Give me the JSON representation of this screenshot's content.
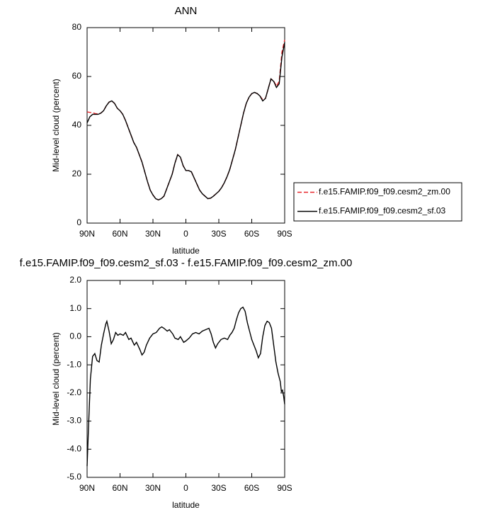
{
  "chart_data": [
    {
      "type": "line",
      "title": "ANN",
      "y_label": "Mid-level cloud (percent)",
      "x_label": "latitude",
      "x": [
        90,
        87.5,
        85,
        82.5,
        80,
        77.5,
        75,
        72.5,
        70,
        67.5,
        65,
        62.5,
        60,
        57.5,
        55,
        52.5,
        50,
        47.5,
        45,
        42.5,
        40,
        37.5,
        35,
        32.5,
        30,
        27.5,
        25,
        22.5,
        20,
        17.5,
        15,
        12.5,
        10,
        7.5,
        5,
        2.5,
        0,
        -2.5,
        -5,
        -7.5,
        -10,
        -12.5,
        -15,
        -17.5,
        -20,
        -22.5,
        -25,
        -27.5,
        -30,
        -32.5,
        -35,
        -37.5,
        -40,
        -42.5,
        -45,
        -47.5,
        -50,
        -52.5,
        -55,
        -57.5,
        -60,
        -62.5,
        -65,
        -67.5,
        -70,
        -72.5,
        -75,
        -77.5,
        -80,
        -82.5,
        -85,
        -87.5,
        -90
      ],
      "xlim": [
        90,
        -90
      ],
      "xticks": [
        {
          "value": 90,
          "label": "90N"
        },
        {
          "value": 60,
          "label": "60N"
        },
        {
          "value": 30,
          "label": "30N"
        },
        0,
        {
          "value": -30,
          "label": "30S"
        },
        {
          "value": -60,
          "label": "60S"
        },
        {
          "value": -90,
          "label": "90S"
        }
      ],
      "ylim": [
        0,
        80
      ],
      "yticks": [
        0,
        20,
        40,
        60,
        80
      ],
      "series": [
        {
          "name": "f.e15.FAMIP.f09_f09.cesm2_zm.00",
          "color": "#e8262b",
          "dashed": true,
          "values": [
            45.5,
            45.3,
            45.2,
            44.8,
            44.7,
            45,
            46,
            48,
            49.5,
            50,
            49,
            47,
            46,
            44.5,
            42,
            39,
            36,
            33,
            31,
            28,
            25,
            21,
            17,
            13.5,
            11.5,
            10,
            9.5,
            10,
            11,
            14,
            17,
            20,
            24.5,
            28,
            27,
            23.5,
            21.5,
            21.5,
            21,
            18.5,
            16,
            13.5,
            12,
            11,
            10,
            10.2,
            11,
            12,
            13,
            14.5,
            16.5,
            19,
            22,
            26,
            30,
            35,
            40,
            45,
            49,
            51.5,
            53,
            53.5,
            53,
            52,
            50.5,
            51,
            55,
            59,
            58.2,
            56,
            58,
            70,
            75
          ]
        },
        {
          "name": "f.e15.FAMIP.f09_f09.cesm2_sf.03",
          "color": "#000000",
          "dashed": false,
          "values": [
            41,
            43.5,
            44.5,
            44.5,
            44.5,
            45,
            46,
            48,
            49.5,
            50,
            49,
            47,
            46,
            44.5,
            42,
            39,
            36,
            33,
            31,
            28,
            25,
            21,
            17,
            13.5,
            11.5,
            10,
            9.5,
            10,
            11,
            14,
            17,
            20,
            24.5,
            28,
            27,
            23.5,
            21.5,
            21.5,
            21,
            18.5,
            16,
            13.5,
            12,
            11,
            10,
            10.2,
            11,
            12,
            13,
            14.5,
            16.5,
            19,
            22,
            26,
            30,
            35,
            40,
            45,
            49,
            51.5,
            53,
            53.5,
            53,
            52,
            50,
            51,
            55,
            59,
            58,
            55.5,
            57,
            68,
            74
          ]
        }
      ]
    },
    {
      "type": "line",
      "title": "f.e15.FAMIP.f09_f09.cesm2_sf.03 - f.e15.FAMIP.f09_f09.cesm2_zm.00",
      "y_label": "Mid-level cloud (percent)",
      "x_label": "latitude",
      "x": [
        90,
        88.5,
        87,
        85,
        83,
        81,
        79,
        77,
        75,
        73,
        72,
        70,
        68,
        66,
        64,
        62,
        60,
        57,
        55,
        52,
        50,
        47,
        45,
        42,
        40,
        38,
        36,
        33,
        30,
        27,
        24,
        22,
        20,
        17,
        15,
        12,
        10,
        7,
        5,
        2,
        0,
        -3,
        -6,
        -9,
        -12,
        -15,
        -18,
        -21,
        -23,
        -25,
        -27,
        -29,
        -32,
        -35,
        -38,
        -40,
        -42,
        -44,
        -46,
        -48,
        -50,
        -52,
        -54,
        -56,
        -58,
        -60,
        -62,
        -64,
        -66,
        -68,
        -70,
        -72,
        -74,
        -76,
        -78,
        -80,
        -82,
        -84,
        -86,
        -87,
        -88,
        -89,
        -90
      ],
      "xlim": [
        90,
        -90
      ],
      "xticks": [
        {
          "value": 90,
          "label": "90N"
        },
        {
          "value": 60,
          "label": "60N"
        },
        {
          "value": 30,
          "label": "30N"
        },
        0,
        {
          "value": -30,
          "label": "30S"
        },
        {
          "value": -60,
          "label": "60S"
        },
        {
          "value": -90,
          "label": "90S"
        }
      ],
      "ylim": [
        -5,
        2
      ],
      "yticks": [
        {
          "value": -5,
          "label": "-5.0"
        },
        {
          "value": -4,
          "label": "-4.0"
        },
        {
          "value": -3,
          "label": "-3.0"
        },
        {
          "value": -2,
          "label": "-2.0"
        },
        {
          "value": -1,
          "label": "-1.0"
        },
        {
          "value": 0,
          "label": "0.0"
        },
        {
          "value": 1,
          "label": "1.0"
        },
        {
          "value": 2,
          "label": "2.0"
        }
      ],
      "series": [
        {
          "color": "#000000",
          "dashed": false,
          "values": [
            -4.6,
            -3,
            -1.5,
            -0.7,
            -0.6,
            -0.85,
            -0.9,
            -0.3,
            0.1,
            0.45,
            0.55,
            0.2,
            -0.25,
            -0.1,
            0.15,
            0.05,
            0.1,
            0.05,
            0.15,
            -0.1,
            -0.05,
            -0.3,
            -0.2,
            -0.45,
            -0.65,
            -0.55,
            -0.3,
            -0.05,
            0.1,
            0.15,
            0.3,
            0.35,
            0.3,
            0.2,
            0.25,
            0.1,
            -0.05,
            -0.1,
            0,
            -0.2,
            -0.15,
            -0.05,
            0.1,
            0.15,
            0.1,
            0.2,
            0.25,
            0.3,
            0.1,
            -0.2,
            -0.4,
            -0.25,
            -0.1,
            -0.05,
            -0.1,
            0.05,
            0.15,
            0.3,
            0.6,
            0.85,
            1,
            1.05,
            0.9,
            0.5,
            0.2,
            -0.1,
            -0.3,
            -0.5,
            -0.75,
            -0.6,
            0,
            0.4,
            0.55,
            0.5,
            0.3,
            -0.3,
            -0.9,
            -1.3,
            -1.6,
            -1.95,
            -1.9,
            -2.1,
            -2.4
          ]
        }
      ]
    }
  ]
}
